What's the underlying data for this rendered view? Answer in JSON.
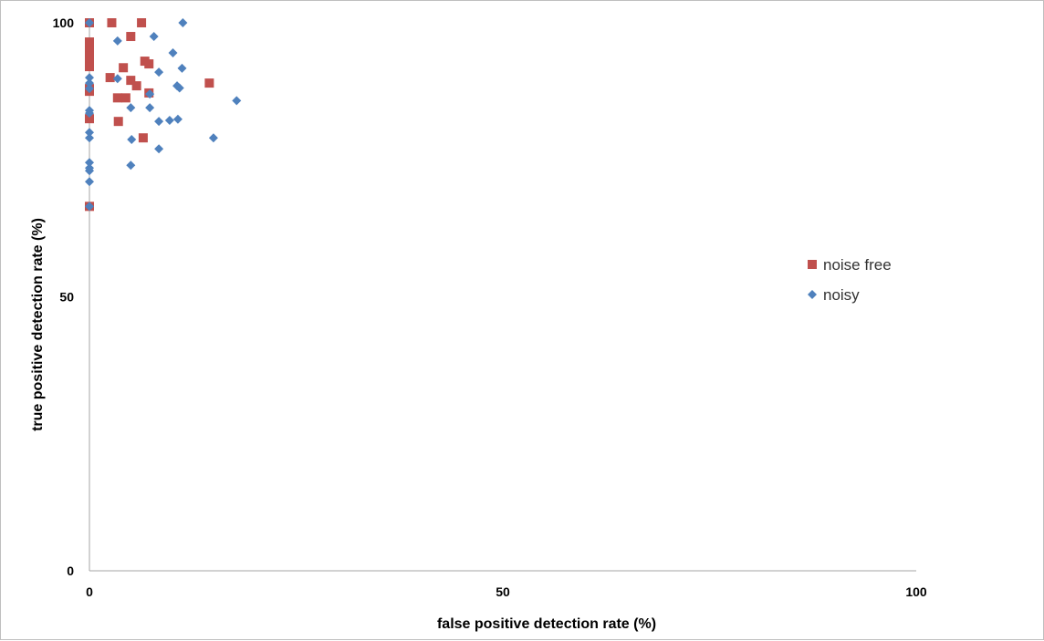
{
  "chart_data": {
    "type": "scatter",
    "title": "",
    "xlabel": "false positive detection rate (%)",
    "ylabel": "true positive detection rate (%)",
    "xlim": [
      0,
      100
    ],
    "ylim": [
      0,
      100
    ],
    "x_ticks": [
      "0",
      "50",
      "100"
    ],
    "y_ticks": [
      "0",
      "50",
      "100"
    ],
    "grid": false,
    "legend_position": "right",
    "series": [
      {
        "name": "noise free",
        "marker": "square",
        "color": "#c0504d",
        "points": [
          [
            0,
            100
          ],
          [
            0,
            96.5
          ],
          [
            0,
            95
          ],
          [
            0,
            94
          ],
          [
            0,
            93
          ],
          [
            0,
            92
          ],
          [
            0,
            88
          ],
          [
            0,
            87.5
          ],
          [
            0,
            82.5
          ],
          [
            0,
            66.5
          ],
          [
            2.7,
            100
          ],
          [
            6.3,
            100
          ],
          [
            5,
            97.5
          ],
          [
            6.7,
            93
          ],
          [
            7.2,
            92.5
          ],
          [
            4.1,
            91.8
          ],
          [
            2.5,
            90
          ],
          [
            5,
            89.5
          ],
          [
            5.7,
            88.5
          ],
          [
            14.5,
            89
          ],
          [
            7.2,
            87.2
          ],
          [
            3.4,
            86.3
          ],
          [
            4.4,
            86.3
          ],
          [
            3.5,
            82
          ],
          [
            6.5,
            79
          ]
        ]
      },
      {
        "name": "noisy",
        "marker": "diamond",
        "color": "#4f81bd",
        "points": [
          [
            0,
            100
          ],
          [
            0,
            90
          ],
          [
            0,
            89
          ],
          [
            0,
            88
          ],
          [
            0,
            84
          ],
          [
            0,
            83.5
          ],
          [
            0,
            80
          ],
          [
            0,
            79
          ],
          [
            0,
            74.5
          ],
          [
            0,
            73.5
          ],
          [
            0,
            73
          ],
          [
            0,
            71
          ],
          [
            0,
            66.5
          ],
          [
            11.3,
            100
          ],
          [
            7.8,
            97.5
          ],
          [
            3.4,
            96.7
          ],
          [
            10.1,
            94.5
          ],
          [
            11.2,
            91.7
          ],
          [
            8.4,
            91
          ],
          [
            3.4,
            89.8
          ],
          [
            10.6,
            88.5
          ],
          [
            10.9,
            88.1
          ],
          [
            7.3,
            87
          ],
          [
            17.8,
            85.8
          ],
          [
            5,
            84.5
          ],
          [
            7.3,
            84.5
          ],
          [
            8.4,
            82
          ],
          [
            9.7,
            82.2
          ],
          [
            10.7,
            82.4
          ],
          [
            15,
            79
          ],
          [
            5.1,
            78.7
          ],
          [
            8.4,
            77
          ],
          [
            5,
            74
          ]
        ]
      }
    ]
  }
}
